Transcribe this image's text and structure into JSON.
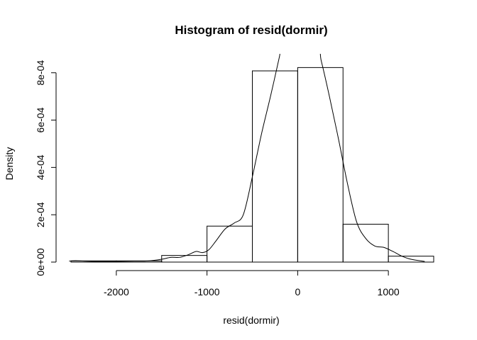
{
  "chart_data": {
    "type": "histogram",
    "title": "Histogram of resid(dormir)",
    "xlabel": "resid(dormir)",
    "ylabel": "Density",
    "xlim": [
      -2500,
      1500
    ],
    "ylim": [
      0,
      0.00088
    ],
    "x_ticks": [
      -2000,
      -1000,
      0,
      1000
    ],
    "x_tick_labels": [
      "-2000",
      "-1000",
      "0",
      "1000"
    ],
    "y_ticks": [
      0,
      0.0002,
      0.0004,
      0.0006,
      0.0008
    ],
    "y_tick_labels": [
      "0e+00",
      "2e-04",
      "4e-04",
      "6e-04",
      "8e-04"
    ],
    "bins": [
      {
        "start": -2500,
        "end": -2000,
        "density": 5e-06
      },
      {
        "start": -2000,
        "end": -1500,
        "density": 5e-06
      },
      {
        "start": -1500,
        "end": -1000,
        "density": 2.8e-05
      },
      {
        "start": -1000,
        "end": -500,
        "density": 0.000152
      },
      {
        "start": -500,
        "end": 0,
        "density": 0.000808
      },
      {
        "start": 0,
        "end": 500,
        "density": 0.000822
      },
      {
        "start": 500,
        "end": 1000,
        "density": 0.00016
      },
      {
        "start": 1000,
        "end": 1500,
        "density": 2.5e-05
      }
    ],
    "density_curve": [
      {
        "x": -2520,
        "y": 4e-06
      },
      {
        "x": -2450,
        "y": 6e-06
      },
      {
        "x": -2350,
        "y": 4e-06
      },
      {
        "x": -2200,
        "y": 3e-06
      },
      {
        "x": -2000,
        "y": 3e-06
      },
      {
        "x": -1800,
        "y": 4e-06
      },
      {
        "x": -1650,
        "y": 5e-06
      },
      {
        "x": -1500,
        "y": 1.2e-05
      },
      {
        "x": -1400,
        "y": 2e-05
      },
      {
        "x": -1300,
        "y": 2e-05
      },
      {
        "x": -1200,
        "y": 3.2e-05
      },
      {
        "x": -1120,
        "y": 4.5e-05
      },
      {
        "x": -1050,
        "y": 4e-05
      },
      {
        "x": -980,
        "y": 5.2e-05
      },
      {
        "x": -900,
        "y": 9e-05
      },
      {
        "x": -800,
        "y": 0.00014
      },
      {
        "x": -700,
        "y": 0.000165
      },
      {
        "x": -600,
        "y": 0.0002
      },
      {
        "x": -500,
        "y": 0.00036
      },
      {
        "x": -400,
        "y": 0.00054
      },
      {
        "x": -300,
        "y": 0.0007
      },
      {
        "x": -200,
        "y": 0.00087
      },
      {
        "x": -170,
        "y": 0.00093
      },
      {
        "x": 200,
        "y": 0.00093
      },
      {
        "x": 260,
        "y": 0.00085
      },
      {
        "x": 350,
        "y": 0.0007
      },
      {
        "x": 450,
        "y": 0.00052
      },
      {
        "x": 550,
        "y": 0.00033
      },
      {
        "x": 650,
        "y": 0.00017
      },
      {
        "x": 750,
        "y": 0.0001
      },
      {
        "x": 850,
        "y": 6.8e-05
      },
      {
        "x": 950,
        "y": 6.2e-05
      },
      {
        "x": 1050,
        "y": 4.5e-05
      },
      {
        "x": 1150,
        "y": 2.5e-05
      },
      {
        "x": 1250,
        "y": 1.2e-05
      },
      {
        "x": 1400,
        "y": 3e-06
      }
    ],
    "grid": false,
    "legend": "none"
  }
}
